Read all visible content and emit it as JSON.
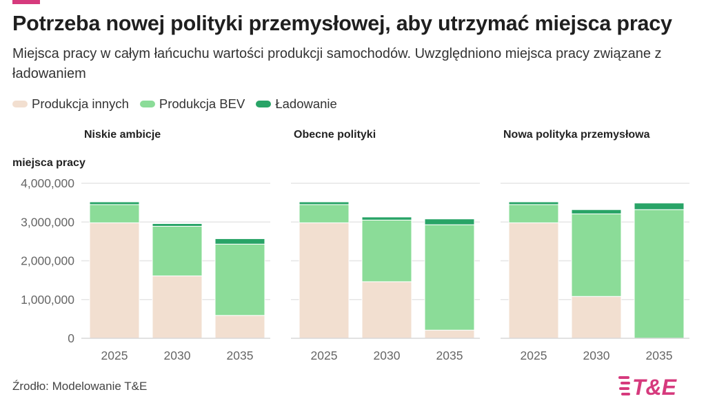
{
  "header": {
    "title": "Potrzeba nowej polityki przemysłowej, aby utrzymać miejsca pracy",
    "subtitle": "Miejsca pracy w całym łańcuchu wartości produkcji samochodów. Uwzględniono miejsca pracy związane z ładowaniem"
  },
  "legend": [
    {
      "label": "Produkcja innych",
      "color": "#f2dfd0"
    },
    {
      "label": "Produkcja BEV",
      "color": "#8bdc98"
    },
    {
      "label": "Ładowanie",
      "color": "#29a467"
    }
  ],
  "chart_data": {
    "type": "bar",
    "stacked": true,
    "ylabel": "miejsca pracy",
    "ylim": [
      0,
      4000000
    ],
    "yticks": [
      0,
      1000000,
      2000000,
      3000000,
      4000000
    ],
    "ytick_labels": [
      "0",
      "1,000,000",
      "2,000,000",
      "3,000,000",
      "4,000,000"
    ],
    "grid": true,
    "legend_position": "top-left",
    "categories": [
      "2025",
      "2030",
      "2035"
    ],
    "panels": [
      {
        "title": "Niskie ambicje",
        "series": [
          {
            "name": "Produkcja innych",
            "values": [
              2980000,
              1610000,
              590000
            ]
          },
          {
            "name": "Produkcja BEV",
            "values": [
              470000,
              1280000,
              1840000
            ]
          },
          {
            "name": "Ładowanie",
            "values": [
              70000,
              70000,
              140000
            ]
          }
        ]
      },
      {
        "title": "Obecne polityki",
        "series": [
          {
            "name": "Produkcja innych",
            "values": [
              2980000,
              1460000,
              210000
            ]
          },
          {
            "name": "Produkcja BEV",
            "values": [
              470000,
              1590000,
              2720000
            ]
          },
          {
            "name": "Ładowanie",
            "values": [
              70000,
              80000,
              150000
            ]
          }
        ]
      },
      {
        "title": "Nowa polityka przemysłowa",
        "series": [
          {
            "name": "Produkcja innych",
            "values": [
              2980000,
              1080000,
              0
            ]
          },
          {
            "name": "Produkcja BEV",
            "values": [
              470000,
              2130000,
              3320000
            ]
          },
          {
            "name": "Ładowanie",
            "values": [
              70000,
              110000,
              170000
            ]
          }
        ]
      }
    ]
  },
  "footer": {
    "source": "Źrodło: Modelowanie T&E",
    "logo_text": "T&E",
    "logo_color": "#d63a7d"
  },
  "accent_color": "#d63a7d"
}
